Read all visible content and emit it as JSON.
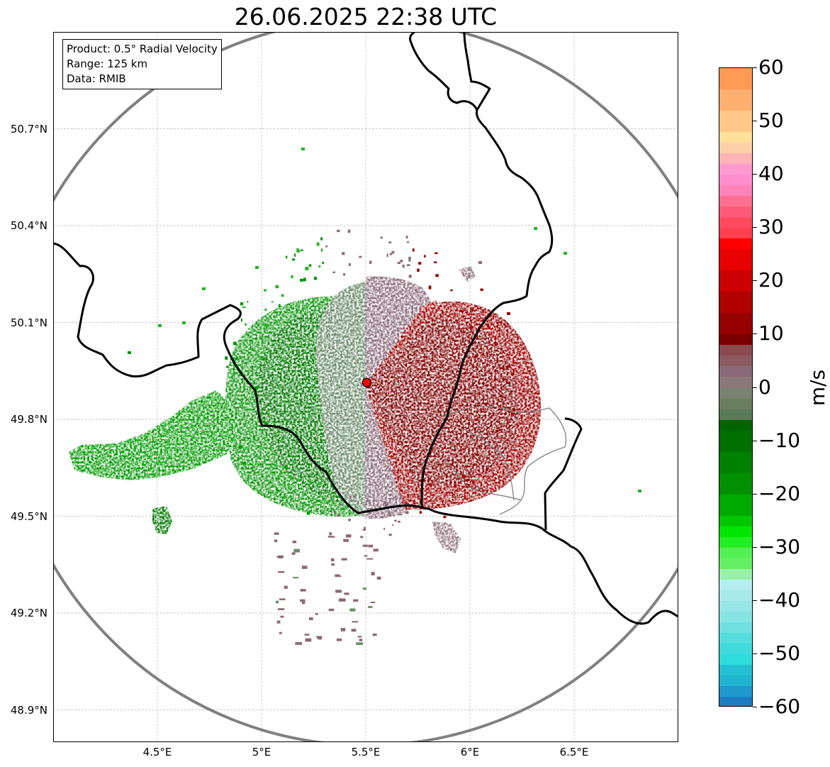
{
  "title": "26.06.2025 22:38 UTC",
  "info_box": {
    "product": "Product: 0.5° Radial Velocity",
    "range": "Range: 125 km",
    "data": "Data: RMIB"
  },
  "map": {
    "lon_range": [
      4.0,
      7.0
    ],
    "lat_range": [
      48.8,
      51.0
    ],
    "radar_site": {
      "lon": 5.505,
      "lat": 49.914
    },
    "range_km": 125,
    "range_ring_color": "#808080",
    "border_color": "#000000",
    "province_border_color": "#808080",
    "gridlines": true,
    "lon_ticks": [
      {
        "value": 4.5,
        "label": "4.5°E"
      },
      {
        "value": 5.0,
        "label": "5°E"
      },
      {
        "value": 5.5,
        "label": "5.5°E"
      },
      {
        "value": 6.0,
        "label": "6°E"
      },
      {
        "value": 6.5,
        "label": "6.5°E"
      }
    ],
    "lat_ticks": [
      {
        "value": 50.7,
        "label": "50.7°N"
      },
      {
        "value": 50.4,
        "label": "50.4°N"
      },
      {
        "value": 50.1,
        "label": "50.1°N"
      },
      {
        "value": 49.8,
        "label": "49.8°N"
      },
      {
        "value": 49.5,
        "label": "49.5°N"
      },
      {
        "value": 49.2,
        "label": "49.2°N"
      },
      {
        "value": 48.9,
        "label": "48.9°N"
      }
    ],
    "echo_colors": {
      "inbound_strong": "#007a00",
      "inbound_medium": "#009a00",
      "inbound_light": "#22b522",
      "near_zero_neg": "#6b8b6b",
      "near_zero_pos": "#8b6b78",
      "outbound_dark": "#800000",
      "outbound": "#9a0000"
    }
  },
  "colorbar": {
    "min": -60,
    "max": 60,
    "unit": "m/s",
    "ticks": [
      60,
      50,
      40,
      30,
      20,
      10,
      0,
      -10,
      -20,
      -30,
      -40,
      -50,
      -60
    ],
    "tick_labels": [
      "60",
      "50",
      "40",
      "30",
      "20",
      "10",
      "0",
      "−10",
      "−20",
      "−30",
      "−40",
      "−50",
      "−60"
    ],
    "bands": [
      {
        "from": 56,
        "to": 60,
        "color": "#ff9a55"
      },
      {
        "from": 52,
        "to": 56,
        "color": "#ffb070"
      },
      {
        "from": 48,
        "to": 52,
        "color": "#ffc888"
      },
      {
        "from": 46,
        "to": 48,
        "color": "#ffe19a"
      },
      {
        "from": 44,
        "to": 46,
        "color": "#ffd0a8"
      },
      {
        "from": 42,
        "to": 44,
        "color": "#ffb4b4"
      },
      {
        "from": 40,
        "to": 42,
        "color": "#ff9ad0"
      },
      {
        "from": 38,
        "to": 40,
        "color": "#ff8fcc"
      },
      {
        "from": 36,
        "to": 38,
        "color": "#ff82b8"
      },
      {
        "from": 34,
        "to": 36,
        "color": "#ff6f90"
      },
      {
        "from": 32,
        "to": 34,
        "color": "#ff5a78"
      },
      {
        "from": 30,
        "to": 32,
        "color": "#ff4a60"
      },
      {
        "from": 28,
        "to": 30,
        "color": "#ff4050"
      },
      {
        "from": 26,
        "to": 28,
        "color": "#ff0000"
      },
      {
        "from": 22,
        "to": 26,
        "color": "#e60000"
      },
      {
        "from": 18,
        "to": 22,
        "color": "#cc0000"
      },
      {
        "from": 14,
        "to": 18,
        "color": "#b00000"
      },
      {
        "from": 10,
        "to": 14,
        "color": "#960000"
      },
      {
        "from": 8,
        "to": 10,
        "color": "#7a0000"
      },
      {
        "from": 6,
        "to": 8,
        "color": "#8b4a50"
      },
      {
        "from": 4,
        "to": 6,
        "color": "#8b5a62"
      },
      {
        "from": 2,
        "to": 4,
        "color": "#8b6a78"
      },
      {
        "from": 0,
        "to": 2,
        "color": "#8c7878"
      },
      {
        "from": -2,
        "to": 0,
        "color": "#7a8270"
      },
      {
        "from": -4,
        "to": -2,
        "color": "#6a7e60"
      },
      {
        "from": -6,
        "to": -4,
        "color": "#5a7a58"
      },
      {
        "from": -8,
        "to": -6,
        "color": "#006400"
      },
      {
        "from": -12,
        "to": -8,
        "color": "#007000"
      },
      {
        "from": -16,
        "to": -12,
        "color": "#008000"
      },
      {
        "from": -20,
        "to": -16,
        "color": "#009000"
      },
      {
        "from": -24,
        "to": -20,
        "color": "#00aa00"
      },
      {
        "from": -26,
        "to": -24,
        "color": "#00c800"
      },
      {
        "from": -28,
        "to": -26,
        "color": "#00e600"
      },
      {
        "from": -30,
        "to": -28,
        "color": "#22ee22"
      },
      {
        "from": -32,
        "to": -30,
        "color": "#55f055"
      },
      {
        "from": -34,
        "to": -32,
        "color": "#66ee66"
      },
      {
        "from": -36,
        "to": -34,
        "color": "#99f0a8"
      },
      {
        "from": -38,
        "to": -36,
        "color": "#b4eef0"
      },
      {
        "from": -40,
        "to": -38,
        "color": "#a8eaea"
      },
      {
        "from": -42,
        "to": -40,
        "color": "#99e6e6"
      },
      {
        "from": -44,
        "to": -42,
        "color": "#88e4e4"
      },
      {
        "from": -46,
        "to": -44,
        "color": "#70e0e0"
      },
      {
        "from": -48,
        "to": -46,
        "color": "#55dddd"
      },
      {
        "from": -50,
        "to": -48,
        "color": "#40dada"
      },
      {
        "from": -52,
        "to": -50,
        "color": "#2edcdc"
      },
      {
        "from": -54,
        "to": -52,
        "color": "#25c0d4"
      },
      {
        "from": -56,
        "to": -54,
        "color": "#20b4d0"
      },
      {
        "from": -58,
        "to": -56,
        "color": "#2098cc"
      },
      {
        "from": -60,
        "to": -58,
        "color": "#1f7cc0"
      }
    ]
  }
}
